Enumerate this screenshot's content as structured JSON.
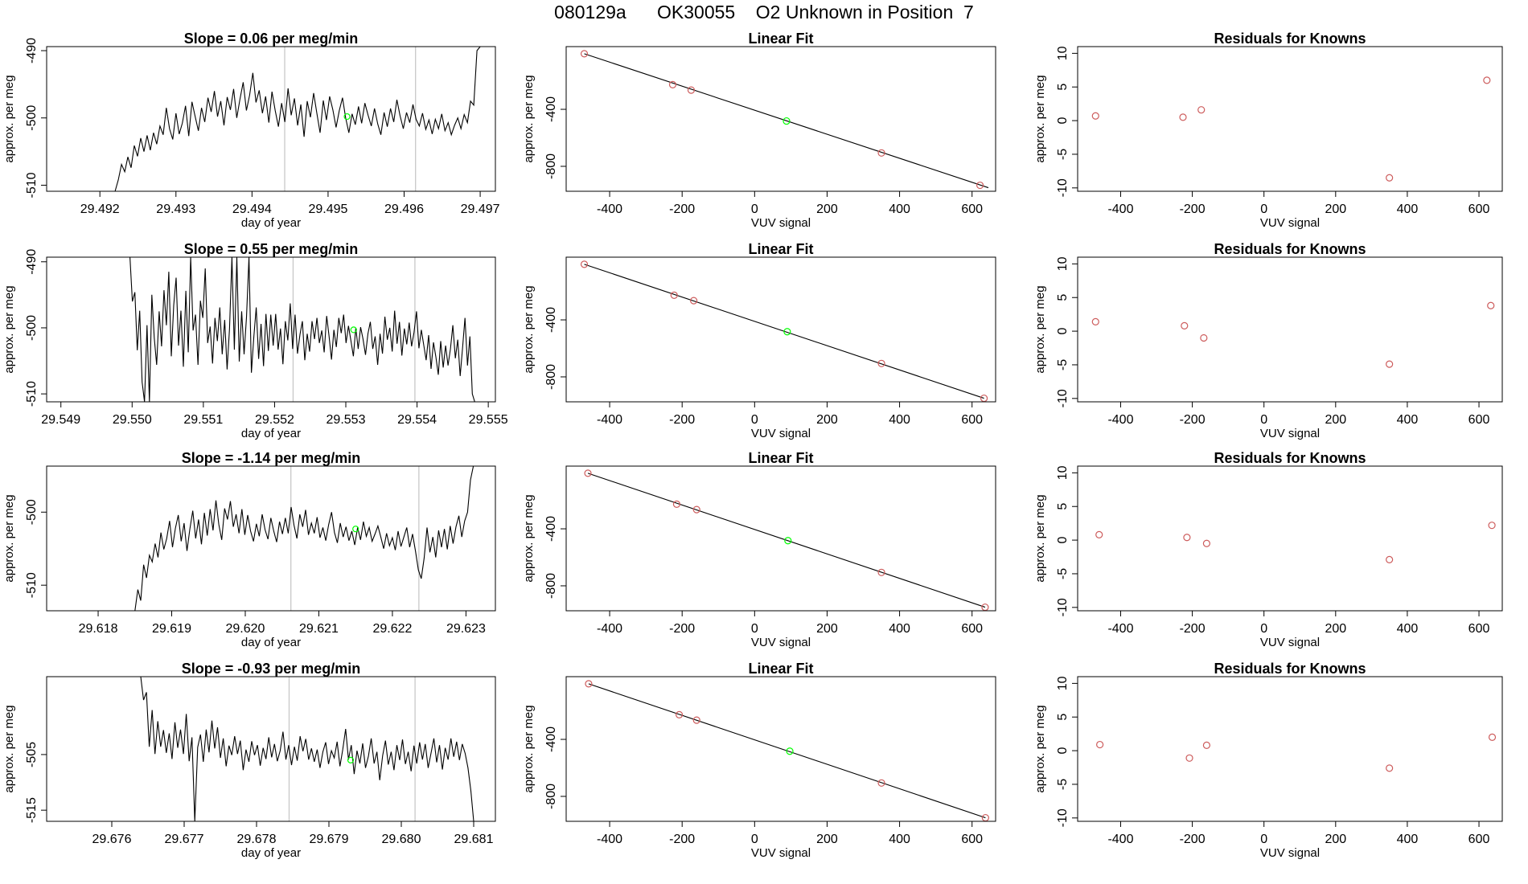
{
  "page": {
    "title": "080129a      OK30055    O2 Unknown in Position  7"
  },
  "colors": {
    "trace": "#000000",
    "known_point": "#cd5c5c",
    "unknown_point": "#00ff00",
    "marker_line": "#c8c8c8",
    "frame": "#000000"
  },
  "chart_data": [
    {
      "type": "line",
      "row": 0,
      "panel": "time-trace",
      "title": "Slope =  0.06  per meg/min",
      "xlabel": "day of year",
      "ylabel": "approx. per meg",
      "xlim": [
        29.4913,
        29.4972
      ],
      "ylim": [
        -510.9,
        -489.4
      ],
      "xticks": [
        29.492,
        29.493,
        29.494,
        29.495,
        29.496,
        29.497
      ],
      "xtick_labels": [
        "29.492",
        "29.493",
        "29.494",
        "29.495",
        "29.496",
        "29.497"
      ],
      "yticks": [
        -510,
        -500,
        -490
      ],
      "ytick_labels": [
        "-510",
        "-500",
        "-490"
      ],
      "x_start": 29.4922,
      "x_end": 29.497,
      "y": [
        -510.9,
        -509.2,
        -506.9,
        -508.0,
        -505.8,
        -507.4,
        -504.1,
        -505.7,
        -503.0,
        -505.0,
        -502.6,
        -504.8,
        -502.2,
        -503.9,
        -501.2,
        -502.5,
        -498.5,
        -501.6,
        -503.2,
        -499.3,
        -502.4,
        -500.8,
        -498.2,
        -502.7,
        -497.6,
        -499.8,
        -501.9,
        -498.5,
        -500.6,
        -497.0,
        -499.1,
        -496.0,
        -499.8,
        -497.5,
        -501.1,
        -496.9,
        -498.8,
        -495.7,
        -500.0,
        -497.2,
        -494.7,
        -498.9,
        -496.6,
        -493.3,
        -497.7,
        -495.9,
        -499.3,
        -496.8,
        -500.7,
        -496.1,
        -498.9,
        -501.3,
        -497.8,
        -500.6,
        -495.6,
        -499.6,
        -497.1,
        -501.1,
        -498.0,
        -502.8,
        -497.5,
        -499.9,
        -496.3,
        -499.3,
        -502.2,
        -497.4,
        -500.3,
        -496.8,
        -498.8,
        -501.4,
        -498.9,
        -497.0,
        -500.0,
        -502.2,
        -499.4,
        -501.0,
        -498.3,
        -500.8,
        -497.8,
        -499.6,
        -501.2,
        -498.6,
        -500.9,
        -502.5,
        -499.2,
        -501.3,
        -498.6,
        -500.6,
        -497.3,
        -499.7,
        -501.6,
        -499.2,
        -500.7,
        -498.0,
        -500.2,
        -501.2,
        -499.3,
        -501.7,
        -500.3,
        -502.4,
        -500.2,
        -501.6,
        -499.4,
        -501.9,
        -500.7,
        -502.5,
        -501.1,
        -500.0,
        -501.6,
        -499.5,
        -500.7,
        -497.5,
        -498.1,
        -490.0,
        -489.4
      ],
      "vlines": [
        29.49443,
        29.49615
      ],
      "unknown_point": [
        29.49525,
        -499.8
      ]
    },
    {
      "type": "scatter",
      "row": 0,
      "panel": "linear-fit",
      "title": "Linear Fit",
      "xlabel": "VUV signal",
      "ylabel": "approx. per meg",
      "xlim": [
        -520,
        665
      ],
      "ylim": [
        -975,
        40
      ],
      "xticks": [
        -400,
        -200,
        0,
        200,
        400,
        600
      ],
      "xtick_labels": [
        "-400",
        "-200",
        "0",
        "200",
        "400",
        "600"
      ],
      "yticks": [
        -400,
        -800
      ],
      "ytick_labels": [
        "-400",
        "-800"
      ],
      "fit_line": {
        "x": [
          -470,
          645
        ],
        "y": [
          -10,
          -950
        ]
      },
      "known_points": {
        "x": [
          -470,
          -226,
          -175,
          350,
          622
        ],
        "y": [
          -10,
          -227,
          -265,
          -706,
          -933
        ]
      },
      "unknown_point": {
        "x": 88,
        "y": -482
      }
    },
    {
      "type": "scatter",
      "row": 0,
      "panel": "residuals",
      "title": "Residuals for Knowns",
      "xlabel": "VUV signal",
      "ylabel": "approx. per meg",
      "xlim": [
        -520,
        665
      ],
      "ylim": [
        -10.5,
        11
      ],
      "xticks": [
        -400,
        -200,
        0,
        200,
        400,
        600
      ],
      "xtick_labels": [
        "-400",
        "-200",
        "0",
        "200",
        "400",
        "600"
      ],
      "yticks": [
        -10,
        -5,
        0,
        5,
        10
      ],
      "ytick_labels": [
        "-10",
        "-5",
        "0",
        "5",
        "10"
      ],
      "points": {
        "x": [
          -470,
          -226,
          -175,
          350,
          622
        ],
        "y": [
          0.7,
          0.5,
          1.6,
          -8.5,
          6.0
        ]
      }
    },
    {
      "type": "line",
      "row": 1,
      "panel": "time-trace",
      "title": "Slope =  0.55  per meg/min",
      "xlabel": "day of year",
      "ylabel": "approx. per meg",
      "xlim": [
        29.5488,
        29.5551
      ],
      "ylim": [
        -511.2,
        -489.3
      ],
      "xticks": [
        29.549,
        29.55,
        29.551,
        29.552,
        29.553,
        29.554,
        29.555
      ],
      "xtick_labels": [
        "29.549",
        "29.550",
        "29.551",
        "29.552",
        "29.553",
        "29.554",
        "29.555"
      ],
      "yticks": [
        -510,
        -500,
        -490
      ],
      "ytick_labels": [
        "-510",
        "-500",
        "-490"
      ],
      "x_start": 29.54997,
      "x_end": 29.55481,
      "y": [
        -489.3,
        -496.0,
        -494.6,
        -503.4,
        -497.4,
        -508.2,
        -511.2,
        -499.6,
        -511.2,
        -495.0,
        -501.5,
        -505.6,
        -497.5,
        -502.8,
        -494.3,
        -499.6,
        -491.5,
        -504.3,
        -496.6,
        -492.4,
        -502.7,
        -497.4,
        -505.9,
        -494.4,
        -503.7,
        -489.3,
        -500.4,
        -498.0,
        -505.6,
        -495.9,
        -498.5,
        -491.0,
        -502.3,
        -499.8,
        -505.4,
        -498.5,
        -502.0,
        -496.9,
        -504.0,
        -498.8,
        -506.3,
        -500.1,
        -489.3,
        -503.3,
        -489.3,
        -505.1,
        -497.5,
        -504.0,
        -498.4,
        -489.3,
        -506.8,
        -501.4,
        -496.9,
        -504.7,
        -499.4,
        -505.8,
        -497.9,
        -503.5,
        -498.0,
        -502.7,
        -497.9,
        -503.3,
        -500.1,
        -505.5,
        -499.0,
        -501.9,
        -496.3,
        -503.2,
        -498.0,
        -503.9,
        -501.0,
        -499.0,
        -504.9,
        -500.9,
        -503.6,
        -499.0,
        -501.7,
        -498.5,
        -502.3,
        -500.4,
        -503.7,
        -498.2,
        -501.3,
        -504.8,
        -500.3,
        -502.9,
        -498.5,
        -500.8,
        -498.0,
        -502.3,
        -499.7,
        -501.9,
        -504.3,
        -500.0,
        -503.2,
        -499.9,
        -501.7,
        -504.1,
        -500.9,
        -499.1,
        -503.2,
        -501.3,
        -505.6,
        -500.9,
        -503.9,
        -498.3,
        -501.8,
        -500.0,
        -503.6,
        -497.4,
        -502.4,
        -499.1,
        -504.2,
        -500.1,
        -502.5,
        -499.2,
        -502.8,
        -500.7,
        -497.5,
        -503.1,
        -500.3,
        -502.6,
        -504.9,
        -501.1,
        -506.2,
        -502.2,
        -504.4,
        -507.1,
        -502.0,
        -506.0,
        -502.7,
        -505.7,
        -503.2,
        -499.6,
        -504.6,
        -501.8,
        -507.3,
        -503.0,
        -498.5,
        -505.7,
        -501.3,
        -510.0,
        -511.2
      ],
      "vlines": [
        29.55226,
        29.55397
      ],
      "unknown_point": [
        29.55311,
        -500.3
      ]
    },
    {
      "type": "scatter",
      "row": 1,
      "panel": "linear-fit",
      "title": "Linear Fit",
      "xlabel": "VUV signal",
      "ylabel": "approx. per meg",
      "xlim": [
        -520,
        665
      ],
      "ylim": [
        -975,
        40
      ],
      "xticks": [
        -400,
        -200,
        0,
        200,
        400,
        600
      ],
      "xtick_labels": [
        "-400",
        "-200",
        "0",
        "200",
        "400",
        "600"
      ],
      "yticks": [
        -400,
        -800
      ],
      "ytick_labels": [
        "-400",
        "-800"
      ],
      "fit_line": {
        "x": [
          -470,
          633
        ],
        "y": [
          -10,
          -950
        ]
      },
      "known_points": {
        "x": [
          -470,
          -222,
          -168,
          350,
          633
        ],
        "y": [
          -10,
          -227,
          -265,
          -706,
          -950
        ]
      },
      "unknown_point": {
        "x": 90,
        "y": -483
      }
    },
    {
      "type": "scatter",
      "row": 1,
      "panel": "residuals",
      "title": "Residuals for Knowns",
      "xlabel": "VUV signal",
      "ylabel": "approx. per meg",
      "xlim": [
        -520,
        665
      ],
      "ylim": [
        -10.5,
        11
      ],
      "xticks": [
        -400,
        -200,
        0,
        200,
        400,
        600
      ],
      "xtick_labels": [
        "-400",
        "-200",
        "0",
        "200",
        "400",
        "600"
      ],
      "yticks": [
        -10,
        -5,
        0,
        5,
        10
      ],
      "ytick_labels": [
        "-10",
        "-5",
        "0",
        "5",
        "10"
      ],
      "points": {
        "x": [
          -470,
          -222,
          -168,
          350,
          633
        ],
        "y": [
          1.4,
          0.8,
          -1.0,
          -4.9,
          3.8
        ]
      }
    },
    {
      "type": "line",
      "row": 2,
      "panel": "time-trace",
      "title": "Slope =  -1.14  per meg/min",
      "xlabel": "day of year",
      "ylabel": "approx. per meg",
      "xlim": [
        29.6173,
        29.6234
      ],
      "ylim": [
        -513.5,
        -493.7
      ],
      "xticks": [
        29.618,
        29.619,
        29.62,
        29.621,
        29.622,
        29.623
      ],
      "xtick_labels": [
        "29.618",
        "29.619",
        "29.620",
        "29.621",
        "29.622",
        "29.623"
      ],
      "yticks": [
        -510,
        -500
      ],
      "ytick_labels": [
        "-510",
        "-500"
      ],
      "x_start": 29.6185,
      "x_end": 29.6231,
      "y": [
        -513.5,
        -510.6,
        -512.1,
        -507.2,
        -509.0,
        -505.9,
        -506.8,
        -504.3,
        -506.2,
        -502.8,
        -505.1,
        -503.6,
        -501.2,
        -504.8,
        -502.2,
        -500.4,
        -504.0,
        -501.5,
        -505.3,
        -502.3,
        -499.8,
        -503.6,
        -501.0,
        -504.4,
        -500.1,
        -503.2,
        -499.6,
        -502.5,
        -498.4,
        -501.7,
        -503.8,
        -499.5,
        -501.0,
        -498.5,
        -502.0,
        -500.3,
        -502.9,
        -499.6,
        -503.1,
        -500.4,
        -502.6,
        -504.0,
        -501.6,
        -503.3,
        -500.3,
        -502.4,
        -503.7,
        -500.8,
        -502.6,
        -504.1,
        -501.3,
        -503.0,
        -500.8,
        -502.9,
        -499.3,
        -501.8,
        -503.6,
        -500.3,
        -502.0,
        -499.7,
        -503.1,
        -501.5,
        -502.9,
        -500.7,
        -503.5,
        -502.1,
        -503.9,
        -501.7,
        -500.0,
        -502.8,
        -504.2,
        -501.5,
        -503.4,
        -502.0,
        -503.9,
        -502.6,
        -504.5,
        -502.1,
        -503.8,
        -501.3,
        -503.3,
        -502.1,
        -504.0,
        -503.0,
        -501.9,
        -503.4,
        -505.0,
        -502.9,
        -504.6,
        -503.5,
        -505.2,
        -502.6,
        -504.7,
        -503.4,
        -502.1,
        -504.8,
        -503.0,
        -505.3,
        -507.9,
        -509.1,
        -506.3,
        -502.1,
        -505.5,
        -503.4,
        -506.2,
        -502.5,
        -504.8,
        -502.3,
        -505.1,
        -501.9,
        -504.3,
        -502.0,
        -500.5,
        -503.4,
        -501.2,
        -500.0,
        -495.6,
        -493.7
      ],
      "vlines": [
        29.62062,
        29.62236
      ],
      "unknown_point": [
        29.6215,
        -502.3
      ]
    },
    {
      "type": "scatter",
      "row": 2,
      "panel": "linear-fit",
      "title": "Linear Fit",
      "xlabel": "VUV signal",
      "ylabel": "approx. per meg",
      "xlim": [
        -520,
        665
      ],
      "ylim": [
        -975,
        40
      ],
      "xticks": [
        -400,
        -200,
        0,
        200,
        400,
        600
      ],
      "xtick_labels": [
        "-400",
        "-200",
        "0",
        "200",
        "400",
        "600"
      ],
      "yticks": [
        -400,
        -800
      ],
      "ytick_labels": [
        "-400",
        "-800"
      ],
      "fit_line": {
        "x": [
          -460,
          636
        ],
        "y": [
          -10,
          -950
        ]
      },
      "known_points": {
        "x": [
          -460,
          -215,
          -160,
          350,
          636
        ],
        "y": [
          -10,
          -227,
          -265,
          -706,
          -950
        ]
      },
      "unknown_point": {
        "x": 92,
        "y": -483
      }
    },
    {
      "type": "scatter",
      "row": 2,
      "panel": "residuals",
      "title": "Residuals for Knowns",
      "xlabel": "VUV signal",
      "ylabel": "approx. per meg",
      "xlim": [
        -520,
        665
      ],
      "ylim": [
        -10.5,
        11
      ],
      "xticks": [
        -400,
        -200,
        0,
        200,
        400,
        600
      ],
      "xtick_labels": [
        "-400",
        "-200",
        "0",
        "200",
        "400",
        "600"
      ],
      "yticks": [
        -10,
        -5,
        0,
        5,
        10
      ],
      "ytick_labels": [
        "-10",
        "-5",
        "0",
        "5",
        "10"
      ],
      "points": {
        "x": [
          -460,
          -215,
          -160,
          350,
          636
        ],
        "y": [
          0.8,
          0.4,
          -0.5,
          -2.9,
          2.2
        ]
      }
    },
    {
      "type": "line",
      "row": 3,
      "panel": "time-trace",
      "title": "Slope =  -0.93  per meg/min",
      "xlabel": "day of year",
      "ylabel": "approx. per meg",
      "xlim": [
        29.6751,
        29.6813
      ],
      "ylim": [
        -517.0,
        -491.0
      ],
      "xticks": [
        29.676,
        29.677,
        29.678,
        29.679,
        29.68,
        29.681
      ],
      "xtick_labels": [
        "29.676",
        "29.677",
        "29.678",
        "29.679",
        "29.680",
        "29.681"
      ],
      "yticks": [
        -515,
        -505
      ],
      "ytick_labels": [
        "-515",
        "-505"
      ],
      "x_start": 29.6764,
      "x_end": 29.681,
      "y": [
        -491.0,
        -495.2,
        -493.8,
        -503.6,
        -497.0,
        -504.9,
        -499.0,
        -503.6,
        -500.6,
        -504.7,
        -501.2,
        -505.8,
        -499.2,
        -503.8,
        -500.5,
        -504.9,
        -497.7,
        -506.2,
        -501.9,
        -517.0,
        -503.7,
        -501.4,
        -506.3,
        -500.5,
        -504.6,
        -498.9,
        -503.9,
        -500.1,
        -505.6,
        -502.1,
        -507.1,
        -503.4,
        -505.1,
        -501.7,
        -504.9,
        -502.5,
        -507.8,
        -504.1,
        -506.3,
        -502.6,
        -505.1,
        -503.3,
        -507.0,
        -503.8,
        -505.8,
        -501.9,
        -505.5,
        -503.1,
        -506.2,
        -504.3,
        -500.9,
        -505.9,
        -503.3,
        -506.9,
        -503.6,
        -506.1,
        -501.7,
        -504.4,
        -502.2,
        -505.9,
        -503.9,
        -506.3,
        -504.1,
        -507.4,
        -504.5,
        -502.8,
        -506.7,
        -504.3,
        -505.6,
        -502.7,
        -507.1,
        -504.1,
        -500.4,
        -505.9,
        -503.3,
        -508.5,
        -504.3,
        -506.6,
        -503.0,
        -507.4,
        -505.3,
        -502.1,
        -506.6,
        -504.5,
        -509.6,
        -505.2,
        -502.5,
        -506.8,
        -504.5,
        -507.8,
        -503.3,
        -506.0,
        -502.3,
        -506.7,
        -504.5,
        -508.0,
        -503.4,
        -506.6,
        -502.8,
        -505.9,
        -503.1,
        -507.4,
        -504.8,
        -502.1,
        -506.4,
        -503.3,
        -507.7,
        -503.8,
        -505.9,
        -502.1,
        -505.4,
        -502.7,
        -506.0,
        -503.1,
        -504.8,
        -507.4,
        -511.5,
        -517.0
      ],
      "vlines": [
        29.67845,
        29.68019
      ],
      "unknown_point": [
        29.6793,
        -506.0
      ]
    },
    {
      "type": "scatter",
      "row": 3,
      "panel": "linear-fit",
      "title": "Linear Fit",
      "xlabel": "VUV signal",
      "ylabel": "approx. per meg",
      "xlim": [
        -520,
        665
      ],
      "ylim": [
        -975,
        40
      ],
      "xticks": [
        -400,
        -200,
        0,
        200,
        400,
        600
      ],
      "xtick_labels": [
        "-400",
        "-200",
        "0",
        "200",
        "400",
        "600"
      ],
      "yticks": [
        -400,
        -800
      ],
      "ytick_labels": [
        "-400",
        "-800"
      ],
      "fit_line": {
        "x": [
          -458,
          637
        ],
        "y": [
          -10,
          -950
        ]
      },
      "known_points": {
        "x": [
          -458,
          -208,
          -160,
          350,
          637
        ],
        "y": [
          -10,
          -227,
          -265,
          -706,
          -950
        ]
      },
      "unknown_point": {
        "x": 97,
        "y": -483
      }
    },
    {
      "type": "scatter",
      "row": 3,
      "panel": "residuals",
      "title": "Residuals for Knowns",
      "xlabel": "VUV signal",
      "ylabel": "approx. per meg",
      "xlim": [
        -520,
        665
      ],
      "ylim": [
        -10.5,
        11
      ],
      "xticks": [
        -400,
        -200,
        0,
        200,
        400,
        600
      ],
      "xtick_labels": [
        "-400",
        "-200",
        "0",
        "200",
        "400",
        "600"
      ],
      "yticks": [
        -10,
        -5,
        0,
        5,
        10
      ],
      "ytick_labels": [
        "-10",
        "-5",
        "0",
        "5",
        "10"
      ],
      "points": {
        "x": [
          -458,
          -208,
          -160,
          350,
          637
        ],
        "y": [
          0.9,
          -1.1,
          0.8,
          -2.6,
          2.0
        ]
      }
    }
  ]
}
